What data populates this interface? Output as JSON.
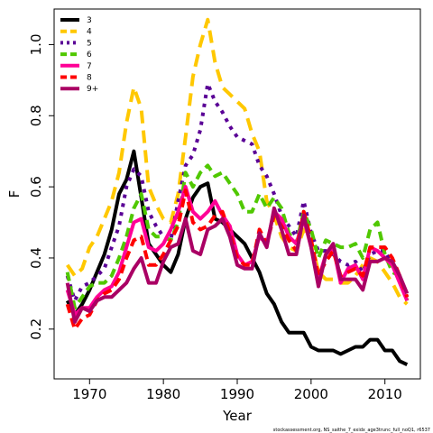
{
  "chart_data": {
    "type": "line",
    "xlabel": "Year",
    "ylabel": "F",
    "xlim": [
      1965.2,
      2014.8
    ],
    "ylim": [
      0.06,
      1.1
    ],
    "xticks": [
      1970,
      1980,
      1990,
      2000,
      2010
    ],
    "yticks": [
      0.2,
      0.4,
      0.6,
      0.8,
      1.0
    ],
    "xtick_labels": [
      "1970",
      "1980",
      "1990",
      "2000",
      "2010"
    ],
    "ytick_labels": [
      "0.2",
      "0.4",
      "0.6",
      "0.8",
      "1.0"
    ],
    "grid": false,
    "legend_position": "top-left",
    "caption": "stockassessment.org, NS_saithe_7_exidx_age3trunc_full_noQ1, r6537",
    "x": [
      1967,
      1968,
      1969,
      1970,
      1971,
      1972,
      1973,
      1974,
      1975,
      1976,
      1977,
      1978,
      1979,
      1980,
      1981,
      1982,
      1983,
      1984,
      1985,
      1986,
      1987,
      1988,
      1989,
      1990,
      1991,
      1992,
      1993,
      1994,
      1995,
      1996,
      1997,
      1998,
      1999,
      2000,
      2001,
      2002,
      2003,
      2004,
      2005,
      2006,
      2007,
      2008,
      2009,
      2010,
      2011,
      2012,
      2013
    ],
    "series": [
      {
        "name": "3",
        "color": "#000000",
        "dash": "solid",
        "values": [
          0.28,
          0.24,
          0.27,
          0.31,
          0.36,
          0.41,
          0.48,
          0.58,
          0.62,
          0.7,
          0.57,
          0.44,
          0.41,
          0.38,
          0.36,
          0.41,
          0.51,
          0.57,
          0.6,
          0.61,
          0.51,
          0.5,
          0.48,
          0.46,
          0.44,
          0.4,
          0.36,
          0.3,
          0.27,
          0.22,
          0.19,
          0.19,
          0.19,
          0.15,
          0.14,
          0.14,
          0.14,
          0.13,
          0.14,
          0.15,
          0.15,
          0.17,
          0.17,
          0.14,
          0.14,
          0.11,
          0.1
        ]
      },
      {
        "name": "4",
        "color": "#FFC800",
        "dash": "long",
        "values": [
          0.38,
          0.35,
          0.37,
          0.43,
          0.46,
          0.51,
          0.56,
          0.64,
          0.78,
          0.88,
          0.82,
          0.6,
          0.55,
          0.51,
          0.5,
          0.58,
          0.74,
          0.91,
          1.0,
          1.07,
          0.95,
          0.88,
          0.86,
          0.84,
          0.82,
          0.75,
          0.7,
          0.56,
          0.52,
          0.46,
          0.43,
          0.42,
          0.48,
          0.45,
          0.36,
          0.34,
          0.34,
          0.33,
          0.33,
          0.35,
          0.38,
          0.4,
          0.39,
          0.36,
          0.33,
          0.29,
          0.27
        ]
      },
      {
        "name": "5",
        "color": "#5A0096",
        "dash": "dot",
        "values": [
          0.35,
          0.28,
          0.32,
          0.33,
          0.35,
          0.37,
          0.43,
          0.49,
          0.6,
          0.65,
          0.63,
          0.53,
          0.49,
          0.46,
          0.45,
          0.56,
          0.66,
          0.69,
          0.76,
          0.89,
          0.84,
          0.81,
          0.77,
          0.74,
          0.73,
          0.72,
          0.66,
          0.63,
          0.58,
          0.52,
          0.49,
          0.46,
          0.56,
          0.47,
          0.42,
          0.42,
          0.41,
          0.39,
          0.38,
          0.39,
          0.36,
          0.41,
          0.42,
          0.42,
          0.38,
          0.34,
          0.29
        ]
      },
      {
        "name": "6",
        "color": "#50C800",
        "dash": "medium",
        "values": [
          0.36,
          0.26,
          0.29,
          0.32,
          0.33,
          0.33,
          0.35,
          0.4,
          0.46,
          0.54,
          0.58,
          0.48,
          0.46,
          0.46,
          0.45,
          0.5,
          0.64,
          0.6,
          0.64,
          0.66,
          0.63,
          0.64,
          0.61,
          0.58,
          0.53,
          0.53,
          0.58,
          0.54,
          0.57,
          0.54,
          0.47,
          0.44,
          0.53,
          0.48,
          0.4,
          0.45,
          0.44,
          0.43,
          0.43,
          0.44,
          0.4,
          0.48,
          0.5,
          0.41,
          0.36,
          0.35,
          0.28
        ]
      },
      {
        "name": "7",
        "color": "#FF0096",
        "dash": "solid",
        "values": [
          0.31,
          0.24,
          0.26,
          0.26,
          0.29,
          0.31,
          0.32,
          0.36,
          0.43,
          0.5,
          0.51,
          0.43,
          0.42,
          0.44,
          0.48,
          0.53,
          0.6,
          0.53,
          0.51,
          0.53,
          0.56,
          0.52,
          0.49,
          0.41,
          0.38,
          0.39,
          0.46,
          0.44,
          0.53,
          0.51,
          0.46,
          0.44,
          0.51,
          0.43,
          0.34,
          0.41,
          0.43,
          0.33,
          0.37,
          0.38,
          0.34,
          0.43,
          0.42,
          0.4,
          0.38,
          0.33,
          0.28
        ]
      },
      {
        "name": "8",
        "color": "#FF0000",
        "dash": "medium",
        "values": [
          0.27,
          0.2,
          0.23,
          0.24,
          0.28,
          0.3,
          0.31,
          0.34,
          0.4,
          0.45,
          0.46,
          0.38,
          0.38,
          0.41,
          0.45,
          0.49,
          0.59,
          0.5,
          0.48,
          0.49,
          0.52,
          0.53,
          0.47,
          0.4,
          0.38,
          0.38,
          0.48,
          0.44,
          0.52,
          0.49,
          0.45,
          0.42,
          0.53,
          0.45,
          0.35,
          0.39,
          0.42,
          0.35,
          0.36,
          0.37,
          0.35,
          0.43,
          0.43,
          0.43,
          0.4,
          0.35,
          0.29
        ]
      },
      {
        "name": "9+",
        "color": "#AA0064",
        "dash": "solid",
        "values": [
          0.33,
          0.22,
          0.26,
          0.25,
          0.28,
          0.29,
          0.29,
          0.31,
          0.33,
          0.37,
          0.4,
          0.33,
          0.33,
          0.39,
          0.43,
          0.44,
          0.51,
          0.42,
          0.41,
          0.48,
          0.49,
          0.51,
          0.46,
          0.38,
          0.37,
          0.37,
          0.47,
          0.43,
          0.54,
          0.48,
          0.41,
          0.41,
          0.52,
          0.43,
          0.32,
          0.41,
          0.44,
          0.34,
          0.34,
          0.34,
          0.31,
          0.39,
          0.39,
          0.4,
          0.39,
          0.35,
          0.3
        ]
      }
    ]
  }
}
